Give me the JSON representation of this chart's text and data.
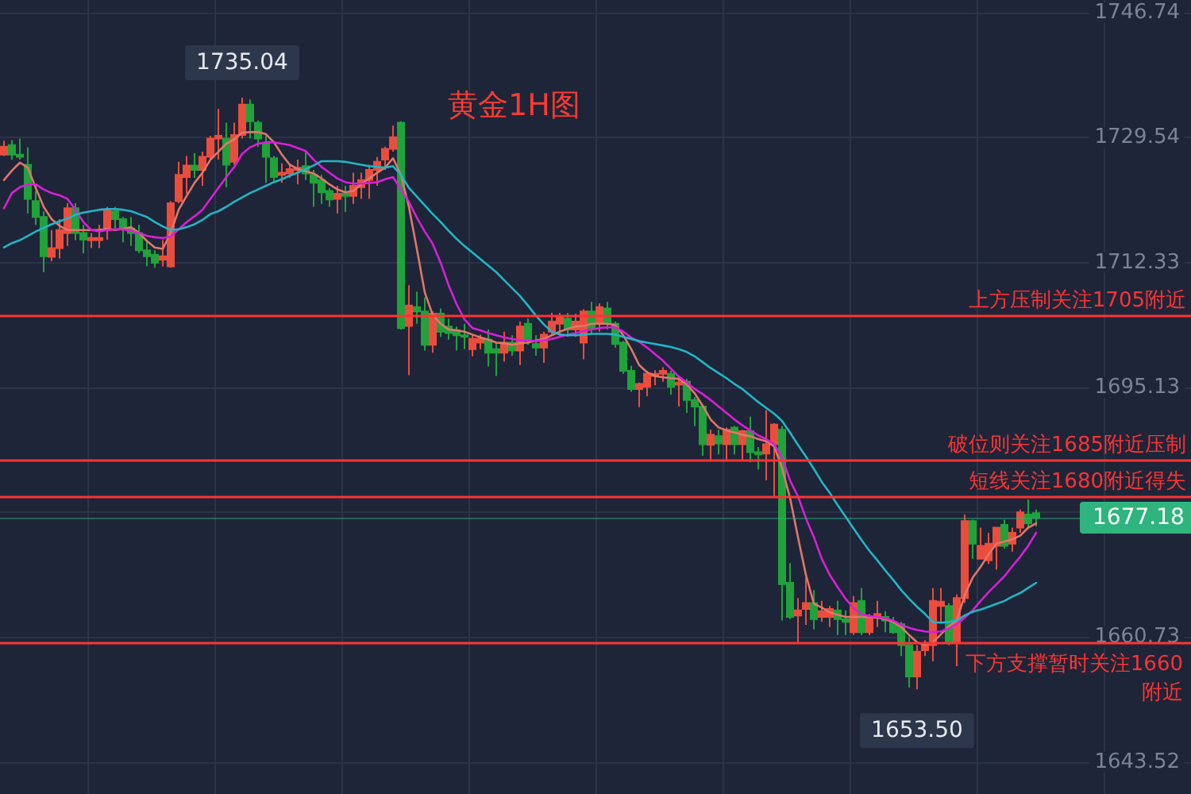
{
  "chart_data": {
    "type": "candlestick",
    "title": "黄金1H图",
    "categories": [
      null,
      null,
      null,
      null,
      null,
      null,
      null,
      null,
      null,
      null,
      null,
      null,
      null,
      null,
      null,
      null,
      null,
      null,
      null,
      null,
      null,
      null,
      null,
      null,
      null,
      null,
      null,
      null,
      null,
      null,
      null,
      null,
      null,
      null,
      null,
      null,
      null,
      null,
      null,
      null,
      null,
      null,
      null,
      null,
      null,
      null,
      null,
      null,
      null,
      null,
      null,
      null,
      null,
      null,
      null,
      null,
      null,
      null,
      null,
      null,
      null,
      null,
      null,
      null,
      null,
      null,
      null,
      null,
      null,
      null,
      null,
      null,
      null,
      null,
      null,
      null,
      null,
      null,
      null,
      null,
      null,
      null,
      null,
      null,
      null,
      null,
      null,
      null,
      null,
      null,
      null,
      null,
      null,
      null,
      null,
      null,
      null,
      null,
      null,
      null,
      null,
      null,
      null,
      null,
      null,
      null,
      null,
      null,
      null,
      null,
      null,
      null,
      null,
      null,
      null,
      null,
      null,
      null,
      null,
      null,
      null,
      null,
      null,
      null,
      null,
      null,
      null,
      null,
      null,
      null,
      null,
      null,
      null,
      null,
      null,
      null,
      null,
      null,
      null,
      null,
      null,
      null,
      null,
      null,
      null,
      null,
      null,
      null,
      null,
      null
    ],
    "series": [
      {
        "ohlc": [
          [
            1727.2,
            1729.1,
            1727.0,
            1728.3
          ],
          [
            1728.5,
            1729.2,
            1726.5,
            1727.2
          ],
          [
            1727.2,
            1729.4,
            1726.5,
            1726.9
          ],
          [
            1725.8,
            1728.2,
            1719.1,
            1721.1
          ],
          [
            1720.8,
            1722.2,
            1717.5,
            1718.6
          ],
          [
            1718.6,
            1719.4,
            1711.0,
            1713.2
          ],
          [
            1713.1,
            1716.8,
            1712.5,
            1714.3
          ],
          [
            1714.3,
            1718.3,
            1712.9,
            1716.8
          ],
          [
            1716.4,
            1720.5,
            1714.6,
            1719.8
          ],
          [
            1719.8,
            1720.5,
            1715.4,
            1716.4
          ],
          [
            1716.4,
            1717.5,
            1713.6,
            1715.5
          ],
          [
            1715.4,
            1716.4,
            1714.3,
            1715.7
          ],
          [
            1715.4,
            1717.5,
            1714.3,
            1715.7
          ],
          [
            1716.8,
            1720.0,
            1715.5,
            1719.6
          ],
          [
            1719.4,
            1720.0,
            1716.8,
            1718.3
          ],
          [
            1718.3,
            1718.6,
            1715.1,
            1717.0
          ],
          [
            1717.0,
            1718.6,
            1714.6,
            1716.4
          ],
          [
            1716.4,
            1717.5,
            1713.6,
            1714.0
          ],
          [
            1714.0,
            1715.4,
            1711.8,
            1713.2
          ],
          [
            1713.4,
            1714.0,
            1711.6,
            1712.3
          ],
          [
            1712.7,
            1715.4,
            1711.8,
            1713.2
          ],
          [
            1711.8,
            1720.8,
            1711.6,
            1720.5
          ],
          [
            1720.8,
            1726.2,
            1720.5,
            1724.4
          ],
          [
            1724.1,
            1727.0,
            1721.8,
            1725.7
          ],
          [
            1725.7,
            1727.4,
            1724.0,
            1725.1
          ],
          [
            1725.1,
            1727.6,
            1722.9,
            1726.9
          ],
          [
            1726.9,
            1729.8,
            1726.5,
            1729.4
          ],
          [
            1729.4,
            1733.5,
            1726.5,
            1729.8
          ],
          [
            1729.4,
            1731.6,
            1722.7,
            1725.8
          ],
          [
            1726.2,
            1731.6,
            1725.8,
            1729.9
          ],
          [
            1729.9,
            1735.04,
            1729.4,
            1734.1
          ],
          [
            1734.1,
            1734.8,
            1729.4,
            1731.8
          ],
          [
            1731.6,
            1731.9,
            1728.3,
            1729.4
          ],
          [
            1728.7,
            1729.8,
            1723.3,
            1726.9
          ],
          [
            1726.7,
            1727.0,
            1723.4,
            1724.1
          ],
          [
            1724.4,
            1726.0,
            1723.3,
            1724.7
          ],
          [
            1724.6,
            1725.9,
            1724.0,
            1725.2
          ],
          [
            1725.1,
            1726.5,
            1723.1,
            1725.4
          ],
          [
            1725.6,
            1727.6,
            1723.7,
            1724.6
          ],
          [
            1724.4,
            1725.1,
            1720.0,
            1723.3
          ],
          [
            1723.7,
            1724.4,
            1720.4,
            1722.0
          ],
          [
            1722.2,
            1722.6,
            1720.0,
            1721.0
          ],
          [
            1721.1,
            1722.9,
            1719.1,
            1721.8
          ],
          [
            1721.8,
            1722.9,
            1719.3,
            1721.5
          ],
          [
            1721.5,
            1724.7,
            1720.4,
            1722.9
          ],
          [
            1722.7,
            1724.7,
            1721.1,
            1723.7
          ],
          [
            1723.7,
            1725.8,
            1721.1,
            1725.1
          ],
          [
            1725.1,
            1726.9,
            1722.9,
            1726.2
          ],
          [
            1726.5,
            1728.3,
            1725.1,
            1728.0
          ],
          [
            1728.0,
            1731.2,
            1727.6,
            1729.6
          ],
          [
            1731.6,
            1731.8,
            1703.1,
            1703.3
          ],
          [
            1703.6,
            1709.2,
            1696.8,
            1706.4
          ],
          [
            1706.2,
            1708.3,
            1703.9,
            1705.6
          ],
          [
            1705.6,
            1707.5,
            1700.2,
            1701.0
          ],
          [
            1701.0,
            1705.6,
            1699.9,
            1705.3
          ],
          [
            1705.3,
            1706.0,
            1702.1,
            1702.8
          ],
          [
            1703.5,
            1704.6,
            1701.7,
            1702.6
          ],
          [
            1703.0,
            1703.5,
            1700.2,
            1702.3
          ],
          [
            1702.3,
            1703.9,
            1700.4,
            1702.1
          ],
          [
            1700.4,
            1702.4,
            1699.4,
            1701.8
          ],
          [
            1701.3,
            1702.4,
            1700.4,
            1701.8
          ],
          [
            1701.7,
            1703.1,
            1698.0,
            1699.9
          ],
          [
            1700.4,
            1701.3,
            1696.7,
            1699.9
          ],
          [
            1699.9,
            1702.8,
            1698.7,
            1701.3
          ],
          [
            1701.3,
            1702.3,
            1699.5,
            1700.2
          ],
          [
            1700.2,
            1704.2,
            1698.2,
            1703.5
          ],
          [
            1703.9,
            1704.6,
            1701.0,
            1701.7
          ],
          [
            1701.1,
            1702.3,
            1699.5,
            1700.6
          ],
          [
            1700.6,
            1702.8,
            1698.5,
            1702.4
          ],
          [
            1702.8,
            1705.4,
            1702.3,
            1704.2
          ],
          [
            1703.9,
            1705.4,
            1702.1,
            1704.9
          ],
          [
            1704.6,
            1705.4,
            1702.1,
            1703.1
          ],
          [
            1703.1,
            1705.3,
            1702.1,
            1704.2
          ],
          [
            1701.3,
            1705.9,
            1699.0,
            1705.6
          ],
          [
            1705.6,
            1706.9,
            1702.4,
            1703.3
          ],
          [
            1703.9,
            1706.7,
            1702.8,
            1706.2
          ],
          [
            1706.0,
            1706.9,
            1703.1,
            1703.9
          ],
          [
            1703.9,
            1704.2,
            1700.6,
            1701.1
          ],
          [
            1701.3,
            1701.5,
            1697.0,
            1697.4
          ],
          [
            1697.4,
            1698.1,
            1694.5,
            1694.9
          ],
          [
            1694.9,
            1695.8,
            1692.4,
            1695.6
          ],
          [
            1695.2,
            1697.4,
            1693.9,
            1697.0
          ],
          [
            1696.7,
            1697.5,
            1695.4,
            1697.0
          ],
          [
            1697.0,
            1697.9,
            1695.9,
            1697.4
          ],
          [
            1697.0,
            1697.4,
            1694.1,
            1695.2
          ],
          [
            1695.5,
            1696.7,
            1692.5,
            1695.8
          ],
          [
            1695.9,
            1696.3,
            1691.6,
            1693.4
          ],
          [
            1693.4,
            1693.8,
            1689.8,
            1692.5
          ],
          [
            1692.5,
            1692.7,
            1685.7,
            1687.3
          ],
          [
            1687.2,
            1689.3,
            1685.1,
            1688.6
          ],
          [
            1688.4,
            1689.3,
            1685.9,
            1687.4
          ],
          [
            1687.3,
            1689.6,
            1685.0,
            1689.3
          ],
          [
            1689.6,
            1689.8,
            1685.9,
            1687.3
          ],
          [
            1687.3,
            1689.3,
            1685.1,
            1689.1
          ],
          [
            1689.1,
            1691.1,
            1684.8,
            1686.2
          ],
          [
            1686.2,
            1686.9,
            1683.8,
            1685.9
          ],
          [
            1686.0,
            1692.0,
            1682.3,
            1687.3
          ],
          [
            1687.3,
            1690.2,
            1680.1,
            1690.0
          ],
          [
            1689.3,
            1689.8,
            1663.0,
            1668.0
          ],
          [
            1668.2,
            1670.9,
            1663.2,
            1663.5
          ],
          [
            1663.7,
            1666.1,
            1660.0,
            1664.4
          ],
          [
            1664.6,
            1668.9,
            1662.4,
            1665.4
          ],
          [
            1665.4,
            1667.2,
            1661.8,
            1663.2
          ],
          [
            1663.5,
            1665.7,
            1662.8,
            1664.3
          ],
          [
            1663.5,
            1665.0,
            1662.1,
            1664.6
          ],
          [
            1664.4,
            1665.7,
            1661.0,
            1663.2
          ],
          [
            1663.2,
            1664.4,
            1661.0,
            1662.8
          ],
          [
            1661.4,
            1666.4,
            1661.0,
            1665.4
          ],
          [
            1665.7,
            1667.5,
            1661.0,
            1661.4
          ],
          [
            1661.4,
            1663.9,
            1661.0,
            1663.5
          ],
          [
            1663.4,
            1665.7,
            1662.1,
            1663.9
          ],
          [
            1663.5,
            1664.3,
            1661.4,
            1663.0
          ],
          [
            1662.8,
            1663.5,
            1661.2,
            1661.4
          ],
          [
            1662.5,
            1662.8,
            1658.1,
            1659.6
          ],
          [
            1659.6,
            1660.7,
            1653.8,
            1655.3
          ],
          [
            1655.3,
            1659.6,
            1653.5,
            1658.7
          ],
          [
            1658.9,
            1660.3,
            1658.1,
            1659.6
          ],
          [
            1659.6,
            1667.5,
            1657.4,
            1665.7
          ],
          [
            1665.0,
            1667.5,
            1662.8,
            1665.6
          ],
          [
            1665.0,
            1665.4,
            1659.6,
            1660.0
          ],
          [
            1660.0,
            1666.6,
            1656.7,
            1666.1
          ],
          [
            1666.1,
            1677.6,
            1665.4,
            1676.7
          ],
          [
            1676.7,
            1676.9,
            1671.5,
            1673.6
          ],
          [
            1671.5,
            1675.8,
            1671.4,
            1673.3
          ],
          [
            1671.3,
            1675.1,
            1670.8,
            1673.6
          ],
          [
            1673.3,
            1675.9,
            1670.0,
            1675.8
          ],
          [
            1676.2,
            1676.9,
            1672.9,
            1673.3
          ],
          [
            1673.6,
            1675.8,
            1672.5,
            1675.1
          ],
          [
            1675.8,
            1678.3,
            1675.1,
            1677.9
          ],
          [
            1677.6,
            1679.7,
            1675.8,
            1676.4
          ],
          [
            1677.8,
            1678.3,
            1676.0,
            1677.18
          ],
          null,
          null,
          null,
          null,
          null,
          null,
          null,
          null,
          null,
          null,
          null,
          null,
          null,
          null,
          null,
          null,
          null,
          null,
          null
        ],
        "colors": [
          "#eb4d3d",
          "#1fa33a",
          "#1fa33a",
          "#1fa33a",
          "#1fa33a",
          "#1fa33a",
          "#eb4d3d",
          "#eb4d3d",
          "#eb4d3d",
          "#1fa33a",
          "#1fa33a",
          "#eb4d3d",
          "#eb4d3d",
          "#eb4d3d",
          "#1fa33a",
          "#1fa33a",
          "#1fa33a",
          "#1fa33a",
          "#1fa33a",
          "#1fa33a",
          "#eb4d3d",
          "#eb4d3d",
          "#eb4d3d",
          "#eb4d3d",
          "#1fa33a",
          "#eb4d3d",
          "#eb4d3d",
          "#eb4d3d",
          "#1fa33a",
          "#eb4d3d",
          "#eb4d3d",
          "#1fa33a",
          "#1fa33a",
          "#1fa33a",
          "#1fa33a",
          "#eb4d3d",
          "#eb4d3d",
          "#eb4d3d",
          "#1fa33a",
          "#1fa33a",
          "#1fa33a",
          "#1fa33a",
          "#eb4d3d",
          "#1fa33a",
          "#eb4d3d",
          "#eb4d3d",
          "#eb4d3d",
          "#eb4d3d",
          "#eb4d3d",
          "#eb4d3d",
          "#1fa33a",
          "#eb4d3d",
          "#1fa33a",
          "#1fa33a",
          "#eb4d3d",
          "#1fa33a",
          "#1fa33a",
          "#1fa33a",
          "#1fa33a",
          "#eb4d3d",
          "#eb4d3d",
          "#1fa33a",
          "#1fa33a",
          "#eb4d3d",
          "#1fa33a",
          "#eb4d3d",
          "#1fa33a",
          "#1fa33a",
          "#eb4d3d",
          "#eb4d3d",
          "#eb4d3d",
          "#1fa33a",
          "#eb4d3d",
          "#eb4d3d",
          "#1fa33a",
          "#eb4d3d",
          "#1fa33a",
          "#1fa33a",
          "#1fa33a",
          "#1fa33a",
          "#eb4d3d",
          "#eb4d3d",
          "#eb4d3d",
          "#eb4d3d",
          "#1fa33a",
          "#eb4d3d",
          "#1fa33a",
          "#1fa33a",
          "#1fa33a",
          "#eb4d3d",
          "#1fa33a",
          "#eb4d3d",
          "#1fa33a",
          "#eb4d3d",
          "#1fa33a",
          "#1fa33a",
          "#eb4d3d",
          "#eb4d3d",
          "#1fa33a",
          "#1fa33a",
          "#eb4d3d",
          "#eb4d3d",
          "#1fa33a",
          "#eb4d3d",
          "#eb4d3d",
          "#1fa33a",
          "#1fa33a",
          "#eb4d3d",
          "#1fa33a",
          "#eb4d3d",
          "#eb4d3d",
          "#1fa33a",
          "#1fa33a",
          "#1fa33a",
          "#1fa33a",
          "#eb4d3d",
          "#eb4d3d",
          "#eb4d3d",
          "#eb4d3d",
          "#1fa33a",
          "#eb4d3d",
          "#eb4d3d",
          "#1fa33a",
          "#eb4d3d",
          "#eb4d3d",
          "#eb4d3d",
          "#1fa33a",
          "#eb4d3d",
          "#eb4d3d",
          "#1fa33a",
          "#1fa33a",
          null,
          null,
          null,
          null,
          null,
          null,
          null,
          null,
          null,
          null,
          null,
          null,
          null,
          null,
          null,
          null,
          null,
          null,
          null
        ]
      },
      {
        "type": "line",
        "color": "#e0776a",
        "values": [
          1723.7,
          1725.0,
          1726.1,
          1725.4,
          1722.6,
          1720.0,
          1718.3,
          1717.4,
          1716.8,
          1716.8,
          1716.8,
          1716.8,
          1716.8,
          1717.0,
          1716.8,
          1717.0,
          1717.2,
          1716.4,
          1715.3,
          1714.4,
          1714.2,
          1716.4,
          1719.6,
          1721.5,
          1723.3,
          1724.7,
          1726.5,
          1727.6,
          1728.7,
          1729.3,
          1730.2,
          1730.3,
          1730.3,
          1730.0,
          1728.9,
          1727.2,
          1725.8,
          1725.2,
          1724.9,
          1724.6,
          1723.9,
          1723.1,
          1722.4,
          1722.0,
          1722.2,
          1723.1,
          1723.9,
          1724.7,
          1725.4,
          1726.7,
          1724.4,
          1720.0,
          1714.2,
          1708.2,
          1705.1,
          1703.9,
          1703.1,
          1703.0,
          1702.8,
          1702.4,
          1702.0,
          1701.7,
          1701.3,
          1701.2,
          1701.0,
          1701.2,
          1701.3,
          1701.6,
          1701.8,
          1702.3,
          1702.8,
          1703.2,
          1703.5,
          1703.6,
          1703.9,
          1703.9,
          1703.9,
          1703.7,
          1702.3,
          1700.4,
          1698.2,
          1697.2,
          1696.7,
          1696.5,
          1696.4,
          1696.3,
          1695.5,
          1694.3,
          1692.6,
          1690.7,
          1689.6,
          1689.2,
          1688.9,
          1688.6,
          1688.4,
          1688.0,
          1687.7,
          1687.0,
          1684.0,
          1679.9,
          1674.5,
          1669.3,
          1665.3,
          1664.8,
          1664.1,
          1663.8,
          1663.5,
          1663.5,
          1663.5,
          1663.5,
          1663.4,
          1663.2,
          1662.8,
          1662.1,
          1661.0,
          1660.0,
          1659.6,
          1660.0,
          1661.1,
          1662.2,
          1663.0,
          1666.5,
          1668.9,
          1670.4,
          1672.1,
          1673.6,
          1673.9,
          1674.2,
          1674.7,
          1675.8,
          1676.4,
          null,
          null,
          null,
          null,
          null,
          null,
          null,
          null,
          null,
          null,
          null,
          null,
          null,
          null,
          null,
          null,
          null,
          null,
          null
        ]
      },
      {
        "type": "line",
        "color": "#d81fd8",
        "values": [
          1719.8,
          1721.9,
          1722.7,
          1723.1,
          1723.1,
          1722.4,
          1721.9,
          1721.6,
          1721.1,
          1719.6,
          1717.9,
          1716.8,
          1716.6,
          1716.8,
          1716.9,
          1716.9,
          1716.7,
          1716.4,
          1716.0,
          1715.8,
          1715.7,
          1715.9,
          1716.9,
          1717.9,
          1718.7,
          1719.6,
          1721.1,
          1722.6,
          1724.1,
          1725.5,
          1727.3,
          1728.2,
          1728.7,
          1728.9,
          1728.9,
          1728.7,
          1728.5,
          1728.1,
          1727.7,
          1726.5,
          1725.5,
          1724.7,
          1723.9,
          1723.4,
          1723.2,
          1723.2,
          1723.3,
          1723.4,
          1723.8,
          1724.1,
          1722.4,
          1720.7,
          1718.5,
          1716.6,
          1714.9,
          1712.3,
          1709.2,
          1706.6,
          1704.5,
          1703.3,
          1703.0,
          1702.6,
          1702.3,
          1702.0,
          1701.8,
          1701.6,
          1701.6,
          1701.5,
          1701.6,
          1701.8,
          1702.1,
          1702.4,
          1702.6,
          1702.9,
          1703.1,
          1703.3,
          1703.4,
          1703.4,
          1702.8,
          1702.0,
          1701.4,
          1700.6,
          1699.7,
          1698.8,
          1697.7,
          1696.6,
          1695.8,
          1694.9,
          1694.2,
          1693.4,
          1692.5,
          1691.6,
          1690.7,
          1689.9,
          1689.2,
          1688.5,
          1688.0,
          1687.3,
          1685.5,
          1682.3,
          1680.1,
          1677.1,
          1674.5,
          1671.5,
          1669.3,
          1667.6,
          1666.0,
          1664.7,
          1663.9,
          1663.6,
          1663.5,
          1663.3,
          1663.0,
          1662.4,
          1662.0,
          1661.7,
          1661.5,
          1661.4,
          1661.5,
          1661.9,
          1662.5,
          1663.4,
          1664.4,
          1665.7,
          1666.9,
          1668.0,
          1669.1,
          1670.5,
          1671.8,
          1673.3,
          1675.1,
          null,
          null,
          null,
          null,
          null,
          null,
          null,
          null,
          null,
          null,
          null,
          null,
          null,
          null,
          null,
          null,
          null,
          null,
          null
        ]
      },
      {
        "type": "line",
        "color": "#22b5c8",
        "values": [
          1714.4,
          1715.0,
          1715.4,
          1716.0,
          1716.6,
          1717.1,
          1717.6,
          1718.0,
          1718.4,
          1718.9,
          1719.2,
          1719.4,
          1719.6,
          1719.7,
          1719.7,
          1719.6,
          1719.4,
          1719.0,
          1718.6,
          1717.9,
          1717.3,
          1716.8,
          1716.9,
          1717.2,
          1717.6,
          1718.2,
          1719.0,
          1719.4,
          1720.0,
          1720.7,
          1721.3,
          1721.9,
          1722.4,
          1722.9,
          1723.4,
          1723.8,
          1724.3,
          1724.7,
          1725.2,
          1725.7,
          1726.3,
          1726.3,
          1726.3,
          1726.2,
          1726.0,
          1725.8,
          1725.6,
          1725.5,
          1725.4,
          1725.6,
          1724.4,
          1722.6,
          1721.4,
          1720.2,
          1719.0,
          1717.9,
          1716.7,
          1715.6,
          1714.6,
          1713.7,
          1712.8,
          1711.9,
          1711.0,
          1709.9,
          1708.8,
          1707.7,
          1706.4,
          1705.0,
          1703.8,
          1702.8,
          1702.4,
          1702.3,
          1702.3,
          1702.4,
          1702.5,
          1702.5,
          1702.5,
          1702.4,
          1702.1,
          1701.8,
          1701.5,
          1701.3,
          1701.1,
          1700.9,
          1700.7,
          1700.4,
          1700.0,
          1699.4,
          1698.6,
          1697.8,
          1697.1,
          1696.4,
          1695.6,
          1694.9,
          1694.0,
          1693.1,
          1692.3,
          1691.5,
          1690.5,
          1688.9,
          1687.2,
          1685.6,
          1683.9,
          1682.1,
          1680.6,
          1678.9,
          1677.3,
          1675.7,
          1674.1,
          1672.6,
          1671.3,
          1669.9,
          1668.6,
          1667.2,
          1666.0,
          1664.9,
          1663.9,
          1662.8,
          1662.7,
          1662.8,
          1663.0,
          1663.7,
          1664.2,
          1664.5,
          1664.9,
          1665.3,
          1665.7,
          1666.3,
          1666.8,
          1667.5,
          1668.2,
          null,
          null,
          null,
          null,
          null,
          null,
          null,
          null,
          null,
          null,
          null,
          null,
          null,
          null,
          null,
          null,
          null,
          null,
          null
        ]
      }
    ],
    "ylim": [
      1639.1,
      1748.5
    ],
    "yticks": [
      1643.52,
      1660.73,
      {
        "value": 1677.93,
        "label": null
      },
      1695.13,
      1712.33,
      1729.54,
      1746.74
    ],
    "tick_labels": "y",
    "grid": true,
    "ref_lines": [
      {
        "axis": "y",
        "value": 1677.18,
        "label": "1677.18",
        "color": "#2fb47e"
      },
      {
        "axis": "y",
        "value": 1705,
        "label": "上方压制关注1705附近",
        "color": "#ff3333"
      },
      {
        "axis": "y",
        "value": 1685,
        "label": "破位则关注1685附近压制",
        "color": "#ff3333"
      },
      {
        "axis": "y",
        "value": 1680,
        "label": "短线关注1680附近得失",
        "color": "#ff3333"
      },
      {
        "axis": "y",
        "value": 1660,
        "label": "下方支撑暂时关注1660附近",
        "color": "#ff3333"
      }
    ],
    "annotations": [
      {
        "text": "1735.04",
        "y": 1735.04
      },
      {
        "text": "1653.50",
        "y": 1653.5
      }
    ]
  }
}
